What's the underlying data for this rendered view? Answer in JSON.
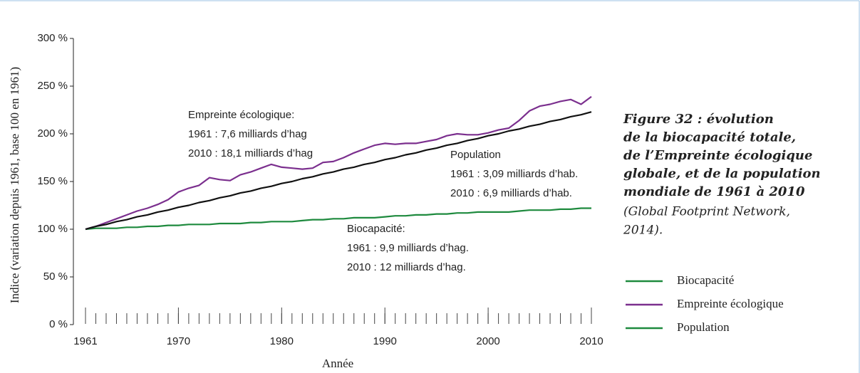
{
  "chart_data": {
    "type": "line",
    "x_label": "Année",
    "y_label": "Indice (variation depuis 1961, base 100 en 1961)",
    "x": [
      1961,
      1962,
      1963,
      1964,
      1965,
      1966,
      1967,
      1968,
      1969,
      1970,
      1971,
      1972,
      1973,
      1974,
      1975,
      1976,
      1977,
      1978,
      1979,
      1980,
      1981,
      1982,
      1983,
      1984,
      1985,
      1986,
      1987,
      1988,
      1989,
      1990,
      1991,
      1992,
      1993,
      1994,
      1995,
      1996,
      1997,
      1998,
      1999,
      2000,
      2001,
      2002,
      2003,
      2004,
      2005,
      2006,
      2007,
      2008,
      2009,
      2010
    ],
    "series": [
      {
        "name": "Biocapacité",
        "color": "#1e8a3e",
        "legend_color": "#1e8a3e",
        "values": [
          100,
          101,
          101,
          101,
          102,
          102,
          103,
          103,
          104,
          104,
          105,
          105,
          105,
          106,
          106,
          106,
          107,
          107,
          108,
          108,
          108,
          109,
          110,
          110,
          111,
          111,
          112,
          112,
          112,
          113,
          114,
          114,
          115,
          115,
          116,
          116,
          117,
          117,
          118,
          118,
          118,
          118,
          119,
          120,
          120,
          120,
          121,
          121,
          122,
          122
        ]
      },
      {
        "name": "Empreinte écologique",
        "color": "#7b2f8e",
        "legend_color": "#7b2f8e",
        "values": [
          100,
          103,
          107,
          111,
          115,
          119,
          122,
          126,
          131,
          139,
          143,
          146,
          154,
          152,
          151,
          157,
          160,
          164,
          168,
          165,
          164,
          163,
          164,
          170,
          171,
          175,
          180,
          184,
          188,
          190,
          189,
          190,
          190,
          192,
          194,
          198,
          200,
          199,
          199,
          201,
          204,
          206,
          214,
          224,
          229,
          231,
          234,
          236,
          231,
          239
        ]
      },
      {
        "name": "Population",
        "color": "#111111",
        "legend_color": "#1e8a3e",
        "values": [
          100,
          103,
          105,
          108,
          110,
          113,
          115,
          118,
          120,
          123,
          125,
          128,
          130,
          133,
          135,
          138,
          140,
          143,
          145,
          148,
          150,
          153,
          155,
          158,
          160,
          163,
          165,
          168,
          170,
          173,
          175,
          178,
          180,
          183,
          185,
          188,
          190,
          193,
          195,
          198,
          200,
          203,
          205,
          208,
          210,
          213,
          215,
          218,
          220,
          223
        ]
      }
    ],
    "xlim": [
      1960,
      2011
    ],
    "xticks": [
      1961,
      1970,
      1980,
      1990,
      2000,
      2010
    ],
    "ylim": [
      0,
      300
    ],
    "yticks": [
      {
        "value": 0,
        "label": "0 %"
      },
      {
        "value": 50,
        "label": "50 %"
      },
      {
        "value": 100,
        "label": "100 %"
      },
      {
        "value": 150,
        "label": "150 %"
      },
      {
        "value": 200,
        "label": "200 %"
      },
      {
        "value": 250,
        "label": "250 %"
      },
      {
        "value": 300,
        "label": "300 %"
      }
    ],
    "annotations": [
      {
        "lines": [
          "Empreinte écologique:",
          "1961 : 7,6 milliards d’hag",
          "2010 : 18,1 milliards d’hag"
        ]
      },
      {
        "lines": [
          "Population",
          "1961 : 3,09 milliards d’hab.",
          "2010 : 6,9 milliards d’hab."
        ]
      },
      {
        "lines": [
          "Biocapacité:",
          "1961 : 9,9 milliards d’hag.",
          "2010 : 12 milliards d’hag."
        ]
      }
    ],
    "caption_title": [
      "Figure 32 : évolution",
      "de la biocapacité totale,",
      "de l’Empreinte écologique",
      "globale, et de la population",
      "mondiale de 1961 à 2010"
    ],
    "caption_source": [
      "(Global Footprint Network,",
      "2014)."
    ]
  }
}
